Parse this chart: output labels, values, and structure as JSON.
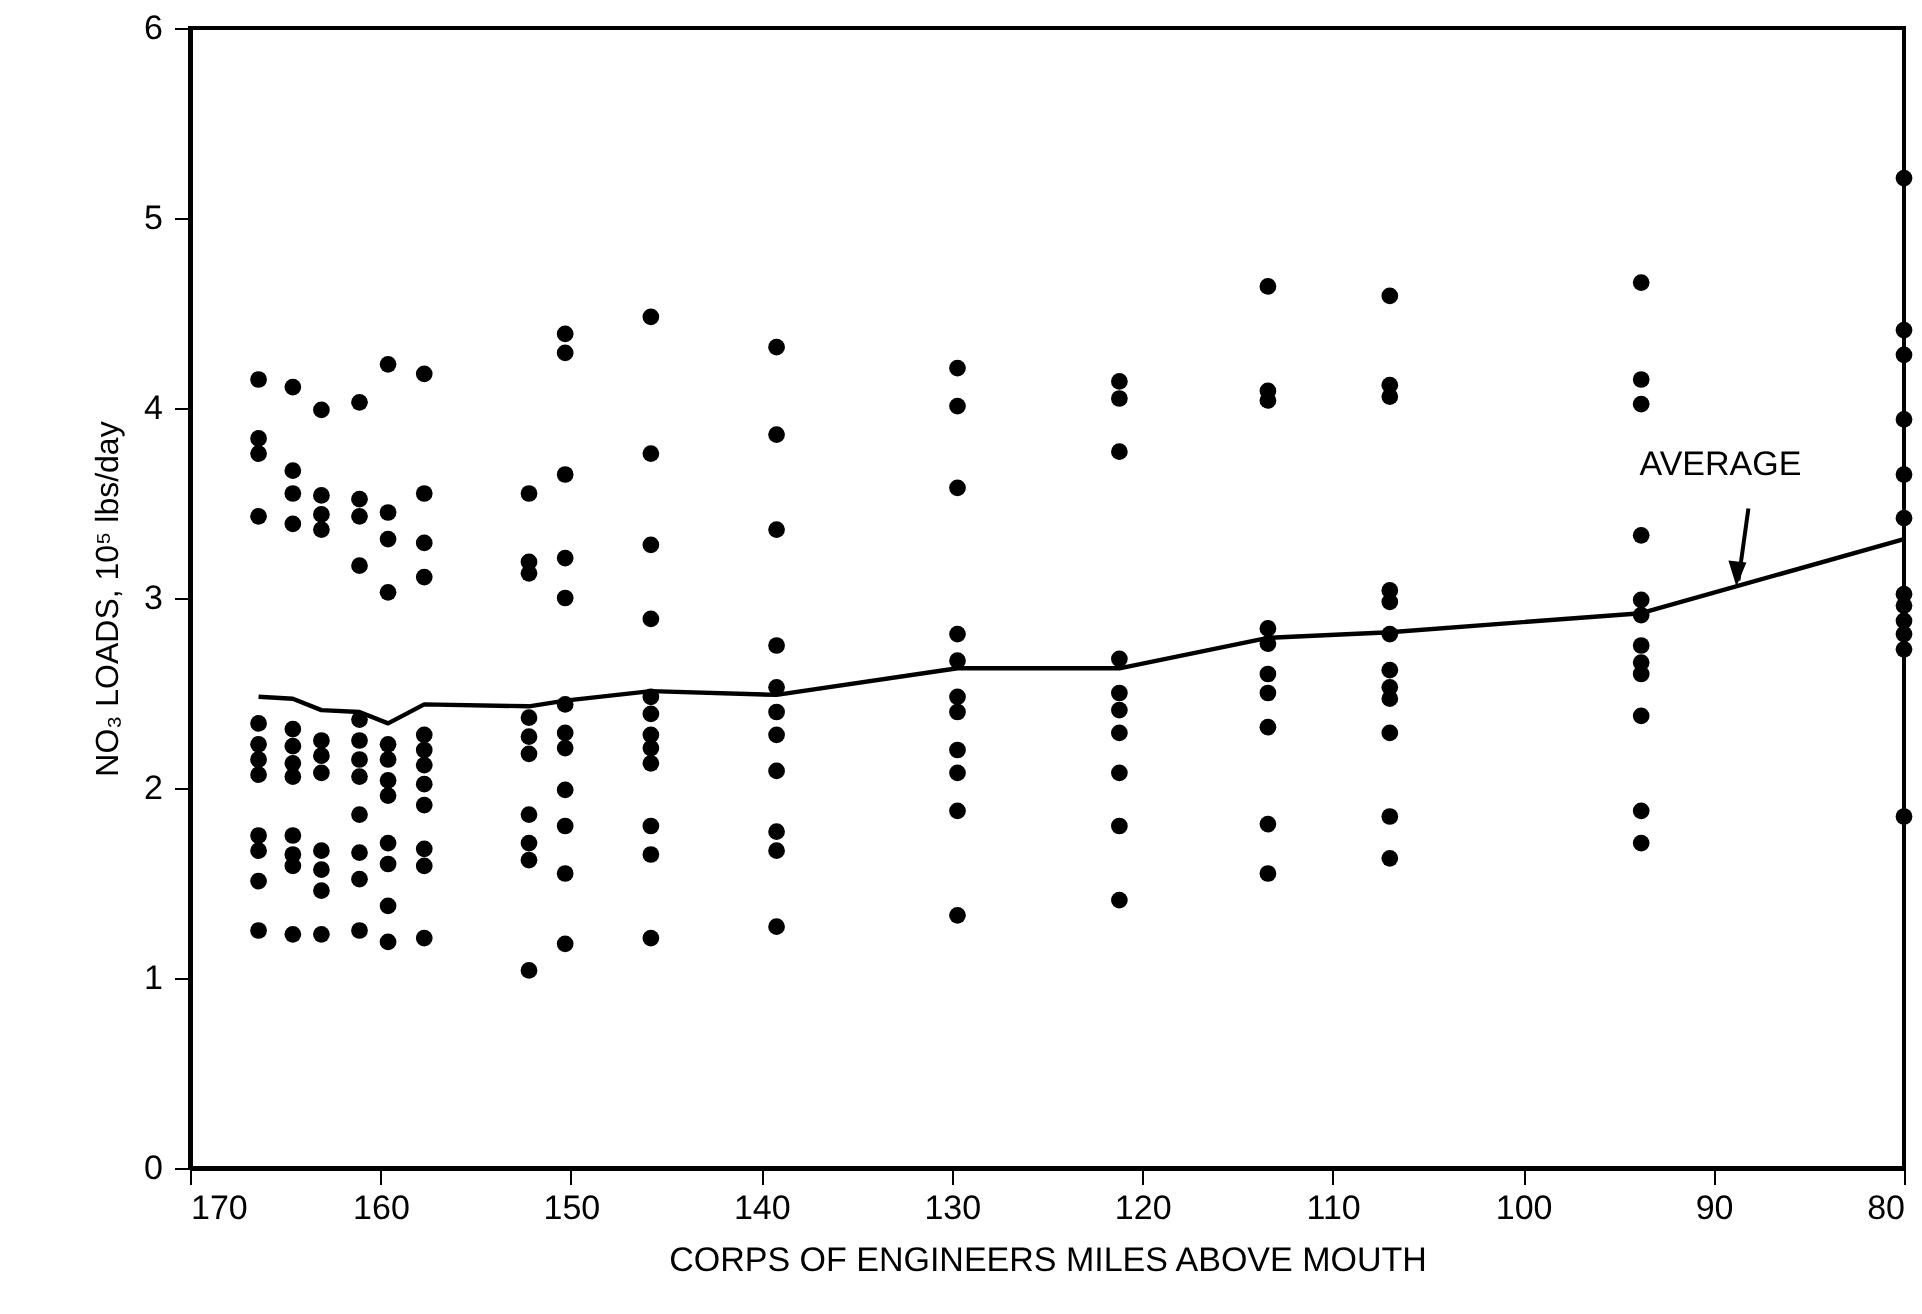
{
  "chart_data": {
    "type": "scatter",
    "xlabel": "CORPS OF ENGINEERS MILES ABOVE MOUTH",
    "ylabel": "NO₃ LOADS, 10⁵ lbs/day",
    "xlim": [
      170,
      80
    ],
    "ylim": [
      0,
      6
    ],
    "xticks": [
      170,
      160,
      150,
      140,
      130,
      120,
      110,
      100,
      90,
      80
    ],
    "yticks": [
      0,
      1,
      2,
      3,
      4,
      5,
      6
    ],
    "annotations": [
      {
        "text": "AVERAGE",
        "x": 88.8,
        "y": 3.05
      }
    ],
    "series": [
      {
        "color": "#000000",
        "marker": "circle",
        "x": [
          166.4,
          166.4,
          166.4,
          166.4,
          166.4,
          166.4,
          166.4,
          166.4,
          166.4,
          166.4,
          166.4,
          166.4,
          164.6,
          164.6,
          164.6,
          164.6,
          164.6,
          164.6,
          164.6,
          164.6,
          164.6,
          164.6,
          164.6,
          164.6,
          163.1,
          163.1,
          163.1,
          163.1,
          163.1,
          163.1,
          163.1,
          163.1,
          163.1,
          163.1,
          163.1,
          161.1,
          161.1,
          161.1,
          161.1,
          161.1,
          161.1,
          161.1,
          161.1,
          161.1,
          161.1,
          161.1,
          161.1,
          159.6,
          159.6,
          159.6,
          159.6,
          159.6,
          159.6,
          159.6,
          159.6,
          159.6,
          159.6,
          159.6,
          159.6,
          157.7,
          157.7,
          157.7,
          157.7,
          157.7,
          157.7,
          157.7,
          157.7,
          157.7,
          157.7,
          157.7,
          157.7,
          152.2,
          152.2,
          152.2,
          152.2,
          152.2,
          152.2,
          152.2,
          152.2,
          152.2,
          152.2,
          150.3,
          150.3,
          150.3,
          150.3,
          150.3,
          150.3,
          150.3,
          150.3,
          150.3,
          150.3,
          150.3,
          150.3,
          145.8,
          145.8,
          145.8,
          145.8,
          145.8,
          145.8,
          145.8,
          145.8,
          145.8,
          145.8,
          145.8,
          145.8,
          139.2,
          139.2,
          139.2,
          139.2,
          139.2,
          139.2,
          139.2,
          139.2,
          139.2,
          139.2,
          139.2,
          129.7,
          129.7,
          129.7,
          129.7,
          129.7,
          129.7,
          129.7,
          129.7,
          129.7,
          129.7,
          129.7,
          121.2,
          121.2,
          121.2,
          121.2,
          121.2,
          121.2,
          121.2,
          121.2,
          121.2,
          121.2,
          113.4,
          113.4,
          113.4,
          113.4,
          113.4,
          113.4,
          113.4,
          113.4,
          113.4,
          113.4,
          107.0,
          107.0,
          107.0,
          107.0,
          107.0,
          107.0,
          107.0,
          107.0,
          107.0,
          107.0,
          107.0,
          107.0,
          93.8,
          93.8,
          93.8,
          93.8,
          93.8,
          93.8,
          93.8,
          93.8,
          93.8,
          93.8,
          93.8,
          93.8,
          80,
          80,
          80,
          80,
          80,
          80,
          80,
          80,
          80,
          80,
          80,
          80
        ],
        "values": [
          4.15,
          3.84,
          3.76,
          3.43,
          2.34,
          2.23,
          2.15,
          2.07,
          1.75,
          1.67,
          1.51,
          1.25,
          4.11,
          3.67,
          3.55,
          3.39,
          2.31,
          2.22,
          2.13,
          2.06,
          1.75,
          1.65,
          1.59,
          1.23,
          3.99,
          3.54,
          3.44,
          3.36,
          2.25,
          2.17,
          2.08,
          1.67,
          1.57,
          1.46,
          1.23,
          4.03,
          3.52,
          3.43,
          3.17,
          2.36,
          2.25,
          2.15,
          2.06,
          1.86,
          1.66,
          1.52,
          1.25,
          4.23,
          3.45,
          3.31,
          3.03,
          2.23,
          2.15,
          2.04,
          1.96,
          1.71,
          1.6,
          1.38,
          1.19,
          4.18,
          3.55,
          3.29,
          3.11,
          2.28,
          2.2,
          2.12,
          2.02,
          1.91,
          1.68,
          1.59,
          1.21,
          3.55,
          3.19,
          3.13,
          2.37,
          2.27,
          2.18,
          1.86,
          1.71,
          1.62,
          1.04,
          4.39,
          4.29,
          3.65,
          3.21,
          3.0,
          2.44,
          2.29,
          2.21,
          1.99,
          1.8,
          1.55,
          1.18,
          4.48,
          3.76,
          3.28,
          2.89,
          2.48,
          2.39,
          2.28,
          2.21,
          2.13,
          1.8,
          1.65,
          1.21,
          4.32,
          3.86,
          3.36,
          2.75,
          2.53,
          2.4,
          2.28,
          2.09,
          1.77,
          1.67,
          1.27,
          4.21,
          4.01,
          3.58,
          2.81,
          2.67,
          2.48,
          2.4,
          2.2,
          2.08,
          1.88,
          1.33,
          4.14,
          4.05,
          3.77,
          2.68,
          2.5,
          2.41,
          2.29,
          2.08,
          1.8,
          1.41,
          4.64,
          4.09,
          4.04,
          2.84,
          2.76,
          2.6,
          2.5,
          2.32,
          1.81,
          1.55,
          4.59,
          4.12,
          4.06,
          3.04,
          2.98,
          2.81,
          2.62,
          2.53,
          2.47,
          2.29,
          1.85,
          1.63,
          4.66,
          4.15,
          4.02,
          3.33,
          2.99,
          2.91,
          2.75,
          2.66,
          2.6,
          2.38,
          1.88,
          1.71,
          5.21,
          4.41,
          4.28,
          3.94,
          3.65,
          3.42,
          3.02,
          2.96,
          2.88,
          2.81,
          2.73,
          1.85
        ]
      },
      {
        "type": "line",
        "color": "#000000",
        "line_style": "solid",
        "x": [
          166.4,
          164.6,
          163.1,
          161.1,
          159.6,
          157.7,
          152.2,
          150.3,
          145.8,
          139.2,
          129.7,
          121.2,
          113.4,
          107.0,
          93.8,
          80
        ],
        "values": [
          2.48,
          2.47,
          2.41,
          2.4,
          2.34,
          2.44,
          2.43,
          2.46,
          2.51,
          2.49,
          2.63,
          2.63,
          2.79,
          2.82,
          2.92,
          3.31
        ]
      }
    ]
  }
}
